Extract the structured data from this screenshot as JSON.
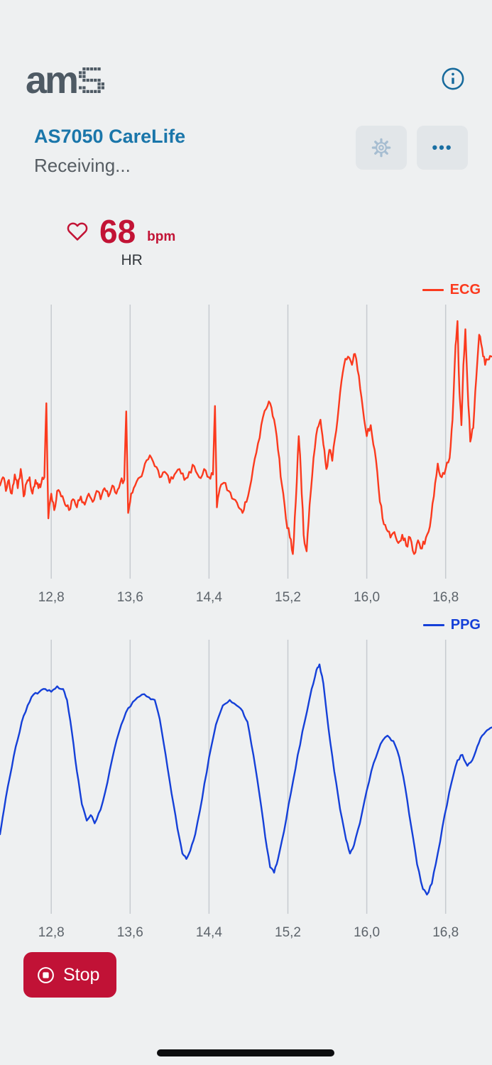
{
  "header": {
    "logo_text": "am"
  },
  "title_bar": {
    "title": "AS7050 CareLife",
    "status": "Receiving...",
    "more_label": "•••"
  },
  "heart_rate": {
    "value": "68",
    "unit": "bpm",
    "label": "HR"
  },
  "footer": {
    "stop_label": "Stop"
  },
  "colors": {
    "title_blue": "#1a76aa",
    "crimson": "#c21335",
    "ecg_red": "#fb3a1e",
    "ppg_blue": "#1540d8",
    "gridline": "#c7cbd0",
    "tick_text": "#5d646b",
    "background": "#eef0f1"
  },
  "chart_data": [
    {
      "type": "line",
      "name": "ECG",
      "legend": "ECG",
      "color": "#fb3a1e",
      "legend_position": "top-right",
      "grid": "vertical-only",
      "x_tick_labels": [
        "12,8",
        "13,6",
        "14,4",
        "15,2",
        "16,0",
        "16,8"
      ],
      "x_tick_values": [
        12.8,
        13.6,
        14.4,
        15.2,
        16.0,
        16.8
      ],
      "x_range": [
        12.28,
        17.27
      ],
      "y_range": [
        0,
        100
      ],
      "jitter": 1.4,
      "points": [
        [
          12.28,
          34
        ],
        [
          12.31,
          37
        ],
        [
          12.34,
          32
        ],
        [
          12.37,
          36
        ],
        [
          12.4,
          31
        ],
        [
          12.43,
          38
        ],
        [
          12.46,
          33
        ],
        [
          12.49,
          40
        ],
        [
          12.52,
          30
        ],
        [
          12.55,
          35
        ],
        [
          12.58,
          37
        ],
        [
          12.61,
          31
        ],
        [
          12.64,
          36
        ],
        [
          12.67,
          33
        ],
        [
          12.7,
          35
        ],
        [
          12.73,
          37
        ],
        [
          12.75,
          64
        ],
        [
          12.77,
          22
        ],
        [
          12.8,
          31
        ],
        [
          12.83,
          25
        ],
        [
          12.86,
          32
        ],
        [
          12.9,
          30
        ],
        [
          12.94,
          27
        ],
        [
          12.98,
          25
        ],
        [
          13.02,
          29
        ],
        [
          13.06,
          26
        ],
        [
          13.1,
          30
        ],
        [
          13.14,
          27
        ],
        [
          13.18,
          31
        ],
        [
          13.22,
          28
        ],
        [
          13.26,
          32
        ],
        [
          13.3,
          29
        ],
        [
          13.34,
          33
        ],
        [
          13.38,
          30
        ],
        [
          13.42,
          34
        ],
        [
          13.46,
          31
        ],
        [
          13.5,
          35
        ],
        [
          13.54,
          36
        ],
        [
          13.56,
          61
        ],
        [
          13.58,
          24
        ],
        [
          13.61,
          31
        ],
        [
          13.65,
          34
        ],
        [
          13.7,
          37
        ],
        [
          13.75,
          42
        ],
        [
          13.8,
          45
        ],
        [
          13.85,
          41
        ],
        [
          13.9,
          37
        ],
        [
          13.95,
          39
        ],
        [
          14.0,
          35
        ],
        [
          14.05,
          38
        ],
        [
          14.1,
          40
        ],
        [
          14.15,
          36
        ],
        [
          14.2,
          39
        ],
        [
          14.25,
          41
        ],
        [
          14.3,
          37
        ],
        [
          14.35,
          40
        ],
        [
          14.4,
          37
        ],
        [
          14.44,
          38
        ],
        [
          14.46,
          63
        ],
        [
          14.48,
          26
        ],
        [
          14.51,
          33
        ],
        [
          14.55,
          35
        ],
        [
          14.6,
          32
        ],
        [
          14.65,
          29
        ],
        [
          14.7,
          26
        ],
        [
          14.74,
          24
        ],
        [
          14.78,
          28
        ],
        [
          14.83,
          36
        ],
        [
          14.88,
          46
        ],
        [
          14.93,
          56
        ],
        [
          14.98,
          62
        ],
        [
          15.02,
          64
        ],
        [
          15.06,
          58
        ],
        [
          15.1,
          47
        ],
        [
          15.14,
          34
        ],
        [
          15.18,
          22
        ],
        [
          15.22,
          15
        ],
        [
          15.25,
          9
        ],
        [
          15.28,
          28
        ],
        [
          15.31,
          52
        ],
        [
          15.33,
          40
        ],
        [
          15.36,
          16
        ],
        [
          15.39,
          10
        ],
        [
          15.42,
          27
        ],
        [
          15.46,
          44
        ],
        [
          15.5,
          55
        ],
        [
          15.53,
          58
        ],
        [
          15.56,
          49
        ],
        [
          15.59,
          40
        ],
        [
          15.62,
          47
        ],
        [
          15.65,
          43
        ],
        [
          15.69,
          54
        ],
        [
          15.73,
          68
        ],
        [
          15.77,
          78
        ],
        [
          15.81,
          81
        ],
        [
          15.85,
          78
        ],
        [
          15.88,
          82
        ],
        [
          15.92,
          74
        ],
        [
          15.96,
          62
        ],
        [
          16.0,
          52
        ],
        [
          16.04,
          56
        ],
        [
          16.08,
          47
        ],
        [
          16.12,
          33
        ],
        [
          16.16,
          22
        ],
        [
          16.2,
          18
        ],
        [
          16.24,
          15
        ],
        [
          16.28,
          17
        ],
        [
          16.32,
          13
        ],
        [
          16.36,
          16
        ],
        [
          16.4,
          12
        ],
        [
          16.44,
          15
        ],
        [
          16.48,
          9
        ],
        [
          16.52,
          14
        ],
        [
          16.56,
          11
        ],
        [
          16.6,
          15
        ],
        [
          16.64,
          19
        ],
        [
          16.68,
          30
        ],
        [
          16.72,
          42
        ],
        [
          16.76,
          37
        ],
        [
          16.8,
          40
        ],
        [
          16.84,
          44
        ],
        [
          16.87,
          58
        ],
        [
          16.9,
          85
        ],
        [
          16.92,
          94
        ],
        [
          16.94,
          68
        ],
        [
          16.96,
          56
        ],
        [
          16.98,
          78
        ],
        [
          17.0,
          91
        ],
        [
          17.02,
          72
        ],
        [
          17.05,
          50
        ],
        [
          17.08,
          55
        ],
        [
          17.11,
          73
        ],
        [
          17.14,
          89
        ],
        [
          17.17,
          84
        ],
        [
          17.2,
          78
        ],
        [
          17.24,
          80
        ],
        [
          17.27,
          81
        ]
      ]
    },
    {
      "type": "line",
      "name": "PPG",
      "legend": "PPG",
      "color": "#1540d8",
      "legend_position": "top-right",
      "grid": "vertical-only",
      "x_tick_labels": [
        "12,8",
        "13,6",
        "14,4",
        "15,2",
        "16,0",
        "16,8"
      ],
      "x_tick_values": [
        12.8,
        13.6,
        14.4,
        15.2,
        16.0,
        16.8
      ],
      "x_range": [
        12.28,
        17.27
      ],
      "y_range": [
        0,
        100
      ],
      "jitter": 0.5,
      "points": [
        [
          12.28,
          29
        ],
        [
          12.32,
          38
        ],
        [
          12.38,
          50
        ],
        [
          12.44,
          61
        ],
        [
          12.5,
          70
        ],
        [
          12.56,
          76
        ],
        [
          12.62,
          80
        ],
        [
          12.68,
          81
        ],
        [
          12.74,
          82
        ],
        [
          12.8,
          81
        ],
        [
          12.86,
          83
        ],
        [
          12.92,
          82
        ],
        [
          12.96,
          78
        ],
        [
          13.01,
          66
        ],
        [
          13.06,
          52
        ],
        [
          13.11,
          40
        ],
        [
          13.16,
          34
        ],
        [
          13.2,
          36
        ],
        [
          13.24,
          33
        ],
        [
          13.3,
          38
        ],
        [
          13.37,
          48
        ],
        [
          13.44,
          60
        ],
        [
          13.51,
          69
        ],
        [
          13.58,
          75
        ],
        [
          13.65,
          78
        ],
        [
          13.72,
          80
        ],
        [
          13.79,
          79
        ],
        [
          13.85,
          78
        ],
        [
          13.9,
          71
        ],
        [
          13.96,
          58
        ],
        [
          14.02,
          44
        ],
        [
          14.08,
          31
        ],
        [
          14.13,
          22
        ],
        [
          14.17,
          20
        ],
        [
          14.21,
          23
        ],
        [
          14.26,
          29
        ],
        [
          14.33,
          42
        ],
        [
          14.4,
          57
        ],
        [
          14.47,
          69
        ],
        [
          14.54,
          76
        ],
        [
          14.61,
          78
        ],
        [
          14.68,
          76
        ],
        [
          14.74,
          74
        ],
        [
          14.79,
          70
        ],
        [
          14.85,
          58
        ],
        [
          14.91,
          44
        ],
        [
          14.97,
          28
        ],
        [
          15.02,
          17
        ],
        [
          15.06,
          15
        ],
        [
          15.1,
          20
        ],
        [
          15.16,
          30
        ],
        [
          15.23,
          44
        ],
        [
          15.3,
          58
        ],
        [
          15.37,
          70
        ],
        [
          15.44,
          82
        ],
        [
          15.49,
          89
        ],
        [
          15.52,
          91
        ],
        [
          15.56,
          84
        ],
        [
          15.61,
          68
        ],
        [
          15.67,
          52
        ],
        [
          15.73,
          38
        ],
        [
          15.79,
          27
        ],
        [
          15.83,
          22
        ],
        [
          15.87,
          25
        ],
        [
          15.93,
          33
        ],
        [
          16.0,
          45
        ],
        [
          16.07,
          55
        ],
        [
          16.14,
          62
        ],
        [
          16.21,
          65
        ],
        [
          16.27,
          63
        ],
        [
          16.33,
          57
        ],
        [
          16.39,
          46
        ],
        [
          16.45,
          32
        ],
        [
          16.51,
          18
        ],
        [
          16.57,
          9
        ],
        [
          16.61,
          7
        ],
        [
          16.66,
          11
        ],
        [
          16.72,
          22
        ],
        [
          16.79,
          36
        ],
        [
          16.86,
          48
        ],
        [
          16.92,
          56
        ],
        [
          16.97,
          58
        ],
        [
          17.02,
          54
        ],
        [
          17.07,
          56
        ],
        [
          17.12,
          61
        ],
        [
          17.17,
          65
        ],
        [
          17.22,
          67
        ],
        [
          17.27,
          68
        ]
      ]
    }
  ]
}
